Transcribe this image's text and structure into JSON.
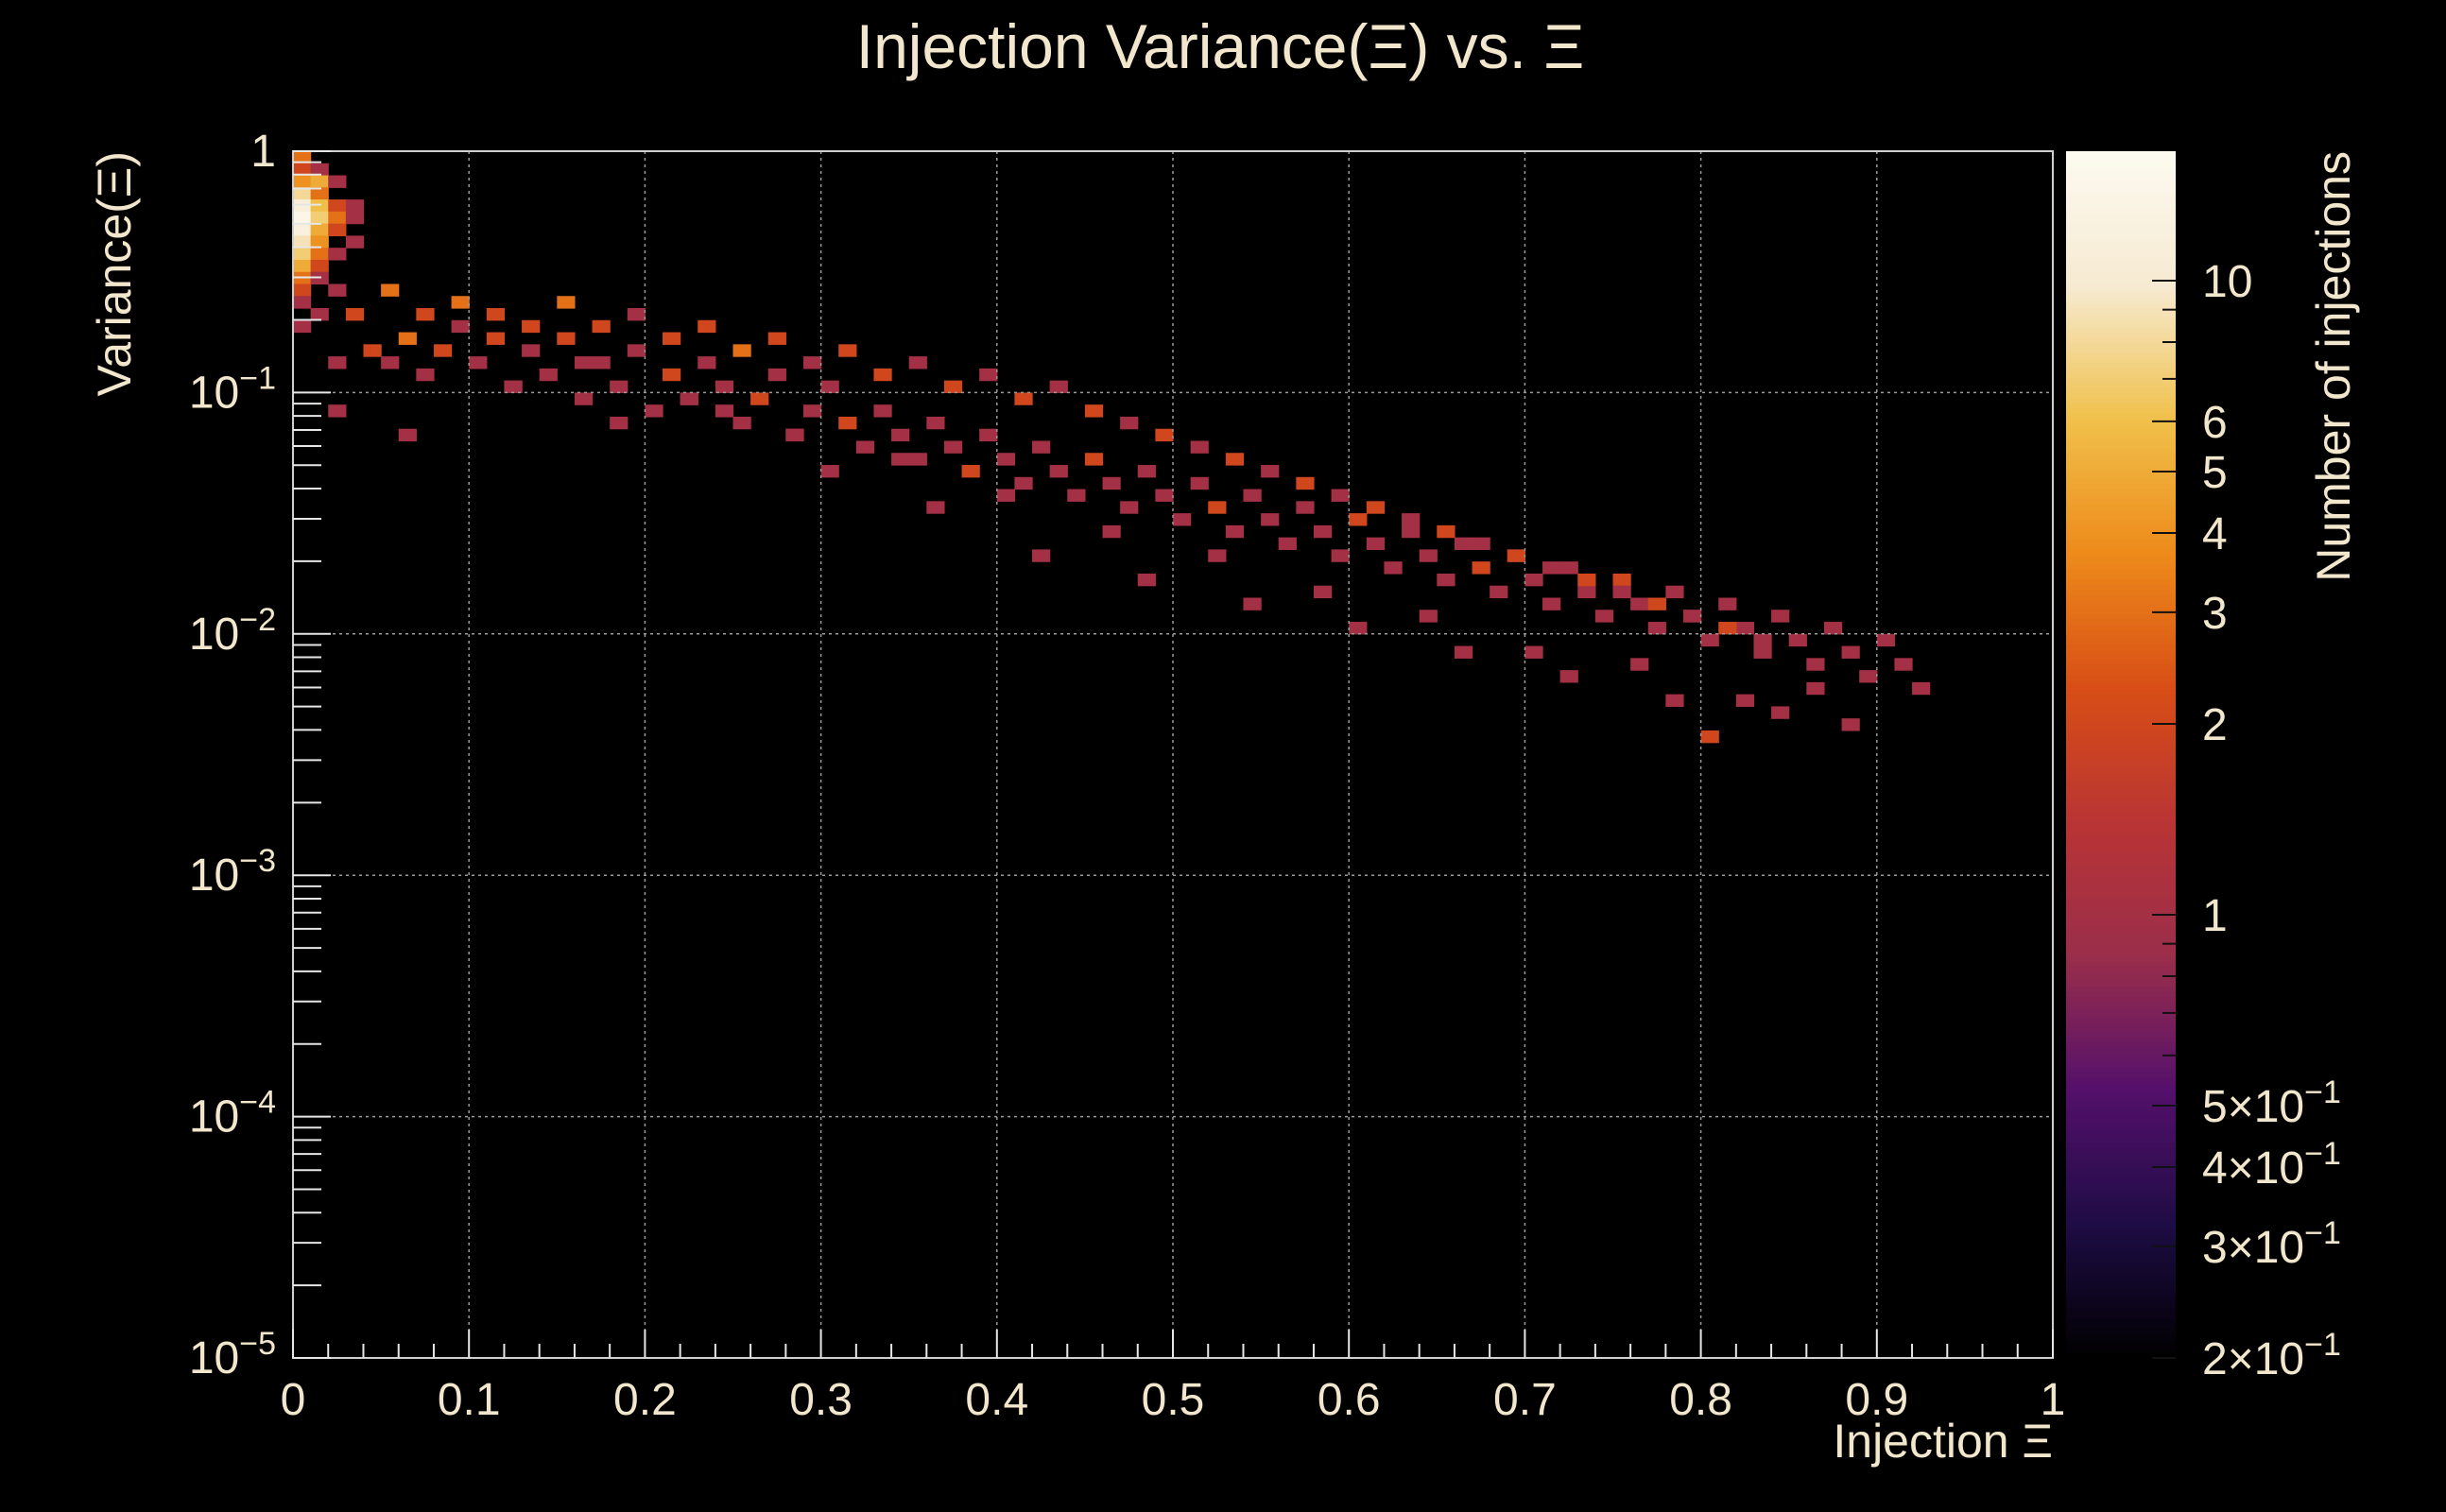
{
  "chart_data": {
    "type": "heatmap",
    "title": "Injection Variance(Ξ) vs. Ξ",
    "xlabel": "Injection Ξ",
    "ylabel": "Variance(Ξ)",
    "zlabel": "Number of injections",
    "xlim": [
      0,
      1
    ],
    "ylim": [
      1e-05,
      1
    ],
    "yscale": "log",
    "zscale": "log",
    "zlim": [
      0.2,
      16
    ],
    "grid": true,
    "x_ticks": [
      "0",
      "0.1",
      "0.2",
      "0.3",
      "0.4",
      "0.5",
      "0.6",
      "0.7",
      "0.8",
      "0.9",
      "1"
    ],
    "y_ticks": [
      {
        "value": 1,
        "label": "1"
      },
      {
        "value": 0.1,
        "label": "10",
        "exp": "−1"
      },
      {
        "value": 0.01,
        "label": "10",
        "exp": "−2"
      },
      {
        "value": 0.001,
        "label": "10",
        "exp": "−3"
      },
      {
        "value": 0.0001,
        "label": "10",
        "exp": "−4"
      },
      {
        "value": 1e-05,
        "label": "10",
        "exp": "−5"
      }
    ],
    "z_ticks": [
      {
        "value": 10,
        "label": "10",
        "exp": ""
      },
      {
        "value": 6,
        "label": "6",
        "exp": ""
      },
      {
        "value": 5,
        "label": "5",
        "exp": ""
      },
      {
        "value": 4,
        "label": "4",
        "exp": ""
      },
      {
        "value": 3,
        "label": "3",
        "exp": ""
      },
      {
        "value": 2,
        "label": "2",
        "exp": ""
      },
      {
        "value": 1,
        "label": "1",
        "exp": ""
      },
      {
        "value": 0.5,
        "label": "5×10",
        "exp": "−1"
      },
      {
        "value": 0.4,
        "label": "4×10",
        "exp": "−1"
      },
      {
        "value": 0.3,
        "label": "3×10",
        "exp": "−1"
      },
      {
        "value": 0.2,
        "label": "2×10",
        "exp": "−1"
      }
    ],
    "colorscale": [
      "#000000",
      "#1e0c45",
      "#54106b",
      "#9a2e4b",
      "#b93434",
      "#d84e16",
      "#ed8a1a",
      "#f0c04a",
      "#f6ead2",
      "#fdfaf0"
    ],
    "bins_x": 100,
    "bins_y": 100,
    "cell_format": "[x_bin, y_bin, count]",
    "cells": [
      [
        0,
        99,
        3
      ],
      [
        0,
        98,
        2
      ],
      [
        1,
        98,
        1
      ],
      [
        0,
        97,
        4
      ],
      [
        1,
        97,
        5
      ],
      [
        2,
        97,
        1
      ],
      [
        0,
        96,
        8
      ],
      [
        1,
        96,
        3
      ],
      [
        0,
        95,
        11
      ],
      [
        1,
        95,
        6
      ],
      [
        2,
        95,
        2
      ],
      [
        3,
        95,
        1
      ],
      [
        0,
        94,
        14
      ],
      [
        1,
        94,
        7
      ],
      [
        2,
        94,
        3
      ],
      [
        3,
        94,
        1
      ],
      [
        0,
        93,
        12
      ],
      [
        1,
        93,
        5
      ],
      [
        2,
        93,
        2
      ],
      [
        0,
        92,
        9
      ],
      [
        1,
        92,
        4
      ],
      [
        3,
        92,
        1
      ],
      [
        0,
        91,
        7
      ],
      [
        1,
        91,
        3
      ],
      [
        2,
        91,
        1
      ],
      [
        0,
        90,
        5
      ],
      [
        1,
        90,
        2
      ],
      [
        0,
        89,
        3
      ],
      [
        1,
        89,
        1
      ],
      [
        0,
        88,
        2
      ],
      [
        2,
        88,
        1
      ],
      [
        0,
        87,
        1
      ],
      [
        1,
        86,
        1
      ],
      [
        0,
        85,
        1
      ],
      [
        2,
        82,
        1
      ],
      [
        4,
        83,
        2
      ],
      [
        5,
        82,
        1
      ],
      [
        6,
        84,
        3
      ],
      [
        7,
        81,
        1
      ],
      [
        8,
        83,
        2
      ],
      [
        9,
        85,
        1
      ],
      [
        10,
        82,
        1
      ],
      [
        11,
        84,
        2
      ],
      [
        12,
        80,
        1
      ],
      [
        13,
        83,
        1
      ],
      [
        14,
        81,
        1
      ],
      [
        15,
        84,
        2
      ],
      [
        16,
        79,
        1
      ],
      [
        17,
        82,
        1
      ],
      [
        18,
        80,
        1
      ],
      [
        19,
        83,
        1
      ],
      [
        20,
        78,
        1
      ],
      [
        21,
        81,
        2
      ],
      [
        22,
        79,
        1
      ],
      [
        23,
        82,
        1
      ],
      [
        24,
        80,
        1
      ],
      [
        25,
        77,
        1
      ],
      [
        26,
        79,
        2
      ],
      [
        27,
        81,
        1
      ],
      [
        28,
        76,
        1
      ],
      [
        29,
        78,
        1
      ],
      [
        30,
        80,
        1
      ],
      [
        31,
        77,
        2
      ],
      [
        32,
        75,
        1
      ],
      [
        33,
        78,
        1
      ],
      [
        34,
        76,
        1
      ],
      [
        35,
        74,
        1
      ],
      [
        36,
        77,
        1
      ],
      [
        37,
        75,
        1
      ],
      [
        38,
        73,
        2
      ],
      [
        39,
        76,
        1
      ],
      [
        40,
        74,
        1
      ],
      [
        41,
        72,
        1
      ],
      [
        42,
        75,
        1
      ],
      [
        43,
        73,
        1
      ],
      [
        44,
        71,
        1
      ],
      [
        45,
        74,
        2
      ],
      [
        46,
        72,
        1
      ],
      [
        47,
        70,
        1
      ],
      [
        48,
        73,
        1
      ],
      [
        49,
        71,
        1
      ],
      [
        50,
        69,
        1
      ],
      [
        51,
        72,
        1
      ],
      [
        52,
        70,
        2
      ],
      [
        53,
        68,
        1
      ],
      [
        54,
        71,
        1
      ],
      [
        55,
        69,
        1
      ],
      [
        56,
        67,
        1
      ],
      [
        57,
        70,
        1
      ],
      [
        58,
        68,
        1
      ],
      [
        59,
        66,
        1
      ],
      [
        60,
        69,
        2
      ],
      [
        61,
        67,
        1
      ],
      [
        62,
        65,
        1
      ],
      [
        63,
        68,
        1
      ],
      [
        64,
        66,
        1
      ],
      [
        65,
        64,
        1
      ],
      [
        66,
        67,
        1
      ],
      [
        67,
        65,
        2
      ],
      [
        68,
        63,
        1
      ],
      [
        69,
        66,
        1
      ],
      [
        70,
        64,
        1
      ],
      [
        71,
        62,
        1
      ],
      [
        72,
        65,
        1
      ],
      [
        73,
        63,
        1
      ],
      [
        74,
        61,
        1
      ],
      [
        75,
        64,
        2
      ],
      [
        76,
        62,
        1
      ],
      [
        77,
        60,
        1
      ],
      [
        78,
        63,
        1
      ],
      [
        79,
        61,
        1
      ],
      [
        80,
        59,
        1
      ],
      [
        81,
        62,
        1
      ],
      [
        82,
        60,
        1
      ],
      [
        83,
        58,
        1
      ],
      [
        84,
        61,
        1
      ],
      [
        85,
        59,
        1
      ],
      [
        86,
        57,
        1
      ],
      [
        87,
        60,
        1
      ],
      [
        88,
        58,
        1
      ],
      [
        89,
        56,
        1
      ],
      [
        90,
        59,
        1
      ],
      [
        91,
        57,
        1
      ],
      [
        92,
        55,
        1
      ],
      [
        3,
        86,
        2
      ],
      [
        5,
        88,
        3
      ],
      [
        7,
        86,
        2
      ],
      [
        9,
        87,
        3
      ],
      [
        11,
        86,
        2
      ],
      [
        13,
        85,
        2
      ],
      [
        15,
        87,
        3
      ],
      [
        17,
        85,
        2
      ],
      [
        19,
        86,
        1
      ],
      [
        21,
        84,
        2
      ],
      [
        23,
        85,
        2
      ],
      [
        25,
        83,
        3
      ],
      [
        27,
        84,
        2
      ],
      [
        29,
        82,
        1
      ],
      [
        31,
        83,
        2
      ],
      [
        33,
        81,
        2
      ],
      [
        35,
        82,
        1
      ],
      [
        37,
        80,
        2
      ],
      [
        39,
        81,
        1
      ],
      [
        41,
        79,
        2
      ],
      [
        43,
        80,
        1
      ],
      [
        45,
        78,
        2
      ],
      [
        47,
        77,
        1
      ],
      [
        49,
        76,
        2
      ],
      [
        51,
        75,
        1
      ],
      [
        53,
        74,
        2
      ],
      [
        55,
        73,
        1
      ],
      [
        57,
        72,
        2
      ],
      [
        59,
        71,
        1
      ],
      [
        61,
        70,
        2
      ],
      [
        63,
        69,
        1
      ],
      [
        65,
        68,
        2
      ],
      [
        67,
        67,
        1
      ],
      [
        69,
        66,
        2
      ],
      [
        71,
        65,
        1
      ],
      [
        73,
        64,
        2
      ],
      [
        75,
        63,
        1
      ],
      [
        77,
        62,
        2
      ],
      [
        79,
        61,
        1
      ],
      [
        81,
        60,
        2
      ],
      [
        83,
        59,
        1
      ],
      [
        2,
        78,
        1
      ],
      [
        6,
        76,
        1
      ],
      [
        12,
        80,
        1
      ],
      [
        18,
        77,
        1
      ],
      [
        24,
        78,
        1
      ],
      [
        30,
        73,
        1
      ],
      [
        36,
        70,
        1
      ],
      [
        42,
        66,
        1
      ],
      [
        48,
        64,
        1
      ],
      [
        54,
        62,
        1
      ],
      [
        60,
        60,
        1
      ],
      [
        66,
        58,
        1
      ],
      [
        72,
        56,
        1
      ],
      [
        78,
        54,
        1
      ],
      [
        84,
        53,
        1
      ],
      [
        88,
        52,
        1
      ],
      [
        80,
        51,
        2
      ],
      [
        82,
        54,
        1
      ],
      [
        86,
        55,
        1
      ],
      [
        76,
        57,
        1
      ],
      [
        70,
        58,
        1
      ],
      [
        64,
        61,
        1
      ],
      [
        58,
        63,
        1
      ],
      [
        52,
        66,
        1
      ],
      [
        46,
        68,
        1
      ],
      [
        40,
        71,
        1
      ],
      [
        34,
        74,
        1
      ],
      [
        28,
        76,
        1
      ],
      [
        22,
        79,
        1
      ],
      [
        16,
        82,
        1
      ]
    ]
  }
}
